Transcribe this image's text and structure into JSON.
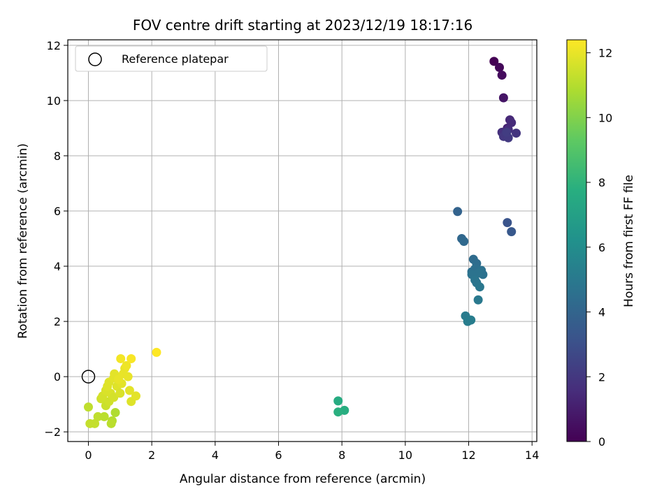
{
  "chart_data": {
    "type": "scatter",
    "title": "FOV centre drift starting at 2023/12/19 18:17:16",
    "xlabel": "Angular distance from reference (arcmin)",
    "ylabel": "Rotation from reference (arcmin)",
    "xlim": [
      -0.65,
      14.15
    ],
    "ylim": [
      -2.35,
      12.2
    ],
    "x_ticks": [
      0,
      2,
      4,
      6,
      8,
      10,
      12,
      14
    ],
    "y_ticks": [
      -2,
      0,
      2,
      4,
      6,
      8,
      10,
      12
    ],
    "grid": true,
    "legend": {
      "position": "upper left",
      "entries": [
        "Reference platepar"
      ]
    },
    "reference_point": {
      "x": 0,
      "y": 0,
      "marker": "open-circle"
    },
    "colorbar": {
      "label": "Hours from first FF file",
      "colormap": "viridis",
      "range": [
        0,
        12.4
      ],
      "ticks": [
        0,
        2,
        4,
        6,
        8,
        10,
        12
      ]
    },
    "points": [
      {
        "x": 12.8,
        "y": 11.42,
        "h": 0.0
      },
      {
        "x": 12.97,
        "y": 11.2,
        "h": 0.2
      },
      {
        "x": 13.05,
        "y": 10.92,
        "h": 0.4
      },
      {
        "x": 13.1,
        "y": 10.1,
        "h": 0.7
      },
      {
        "x": 13.22,
        "y": 9.0,
        "h": 1.2
      },
      {
        "x": 13.3,
        "y": 9.3,
        "h": 1.4
      },
      {
        "x": 13.35,
        "y": 9.2,
        "h": 1.5
      },
      {
        "x": 13.25,
        "y": 8.95,
        "h": 1.6
      },
      {
        "x": 13.05,
        "y": 8.85,
        "h": 1.7
      },
      {
        "x": 13.15,
        "y": 8.8,
        "h": 1.8
      },
      {
        "x": 13.5,
        "y": 8.82,
        "h": 1.9
      },
      {
        "x": 13.1,
        "y": 8.7,
        "h": 2.0
      },
      {
        "x": 13.25,
        "y": 8.65,
        "h": 2.1
      },
      {
        "x": 13.2,
        "y": 8.85,
        "h": 2.2
      },
      {
        "x": 13.22,
        "y": 5.58,
        "h": 3.2
      },
      {
        "x": 13.35,
        "y": 5.25,
        "h": 3.4
      },
      {
        "x": 11.65,
        "y": 5.98,
        "h": 3.9
      },
      {
        "x": 11.78,
        "y": 5.0,
        "h": 4.1
      },
      {
        "x": 11.85,
        "y": 4.9,
        "h": 4.2
      },
      {
        "x": 12.15,
        "y": 4.25,
        "h": 4.3
      },
      {
        "x": 12.25,
        "y": 4.1,
        "h": 4.4
      },
      {
        "x": 12.2,
        "y": 3.9,
        "h": 4.5
      },
      {
        "x": 12.1,
        "y": 3.8,
        "h": 4.5
      },
      {
        "x": 12.4,
        "y": 3.85,
        "h": 4.6
      },
      {
        "x": 12.45,
        "y": 3.7,
        "h": 4.6
      },
      {
        "x": 12.3,
        "y": 3.75,
        "h": 4.7
      },
      {
        "x": 12.1,
        "y": 3.7,
        "h": 4.7
      },
      {
        "x": 12.2,
        "y": 3.5,
        "h": 4.8
      },
      {
        "x": 12.25,
        "y": 3.4,
        "h": 4.8
      },
      {
        "x": 12.35,
        "y": 3.25,
        "h": 4.9
      },
      {
        "x": 12.3,
        "y": 2.78,
        "h": 5.0
      },
      {
        "x": 11.9,
        "y": 2.2,
        "h": 5.1
      },
      {
        "x": 11.97,
        "y": 2.0,
        "h": 5.2
      },
      {
        "x": 12.07,
        "y": 2.05,
        "h": 5.2
      },
      {
        "x": 7.88,
        "y": -0.88,
        "h": 7.6
      },
      {
        "x": 8.08,
        "y": -1.22,
        "h": 7.7
      },
      {
        "x": 7.88,
        "y": -1.28,
        "h": 7.8
      },
      {
        "x": 0.0,
        "y": -1.1,
        "h": 11.2
      },
      {
        "x": 0.05,
        "y": -1.7,
        "h": 11.3
      },
      {
        "x": 0.2,
        "y": -1.7,
        "h": 11.3
      },
      {
        "x": 0.3,
        "y": -1.45,
        "h": 11.2
      },
      {
        "x": 0.5,
        "y": -1.45,
        "h": 11.1
      },
      {
        "x": 0.85,
        "y": -1.3,
        "h": 10.9
      },
      {
        "x": 0.75,
        "y": -1.6,
        "h": 11.0
      },
      {
        "x": 0.72,
        "y": -1.7,
        "h": 11.1
      },
      {
        "x": 0.55,
        "y": -1.05,
        "h": 11.4
      },
      {
        "x": 0.65,
        "y": -0.9,
        "h": 11.5
      },
      {
        "x": 0.4,
        "y": -0.8,
        "h": 11.5
      },
      {
        "x": 0.45,
        "y": -0.7,
        "h": 11.6
      },
      {
        "x": 0.55,
        "y": -0.5,
        "h": 11.7
      },
      {
        "x": 0.7,
        "y": -0.6,
        "h": 11.7
      },
      {
        "x": 0.8,
        "y": -0.75,
        "h": 11.6
      },
      {
        "x": 0.65,
        "y": -0.2,
        "h": 11.8
      },
      {
        "x": 0.8,
        "y": -0.05,
        "h": 11.9
      },
      {
        "x": 0.82,
        "y": 0.1,
        "h": 11.9
      },
      {
        "x": 0.9,
        "y": -0.35,
        "h": 11.8
      },
      {
        "x": 1.0,
        "y": -0.6,
        "h": 11.7
      },
      {
        "x": 1.05,
        "y": -0.25,
        "h": 11.9
      },
      {
        "x": 1.1,
        "y": 0.1,
        "h": 12.0
      },
      {
        "x": 1.15,
        "y": 0.3,
        "h": 12.0
      },
      {
        "x": 1.2,
        "y": 0.4,
        "h": 12.1
      },
      {
        "x": 1.25,
        "y": 0.0,
        "h": 12.0
      },
      {
        "x": 1.3,
        "y": -0.5,
        "h": 11.9
      },
      {
        "x": 1.35,
        "y": -0.9,
        "h": 11.8
      },
      {
        "x": 1.5,
        "y": -0.7,
        "h": 11.9
      },
      {
        "x": 1.02,
        "y": 0.65,
        "h": 12.2
      },
      {
        "x": 1.35,
        "y": 0.65,
        "h": 12.3
      },
      {
        "x": 2.15,
        "y": 0.88,
        "h": 12.4
      },
      {
        "x": 0.6,
        "y": -0.35,
        "h": 11.8
      },
      {
        "x": 0.95,
        "y": -0.1,
        "h": 12.0
      }
    ]
  }
}
